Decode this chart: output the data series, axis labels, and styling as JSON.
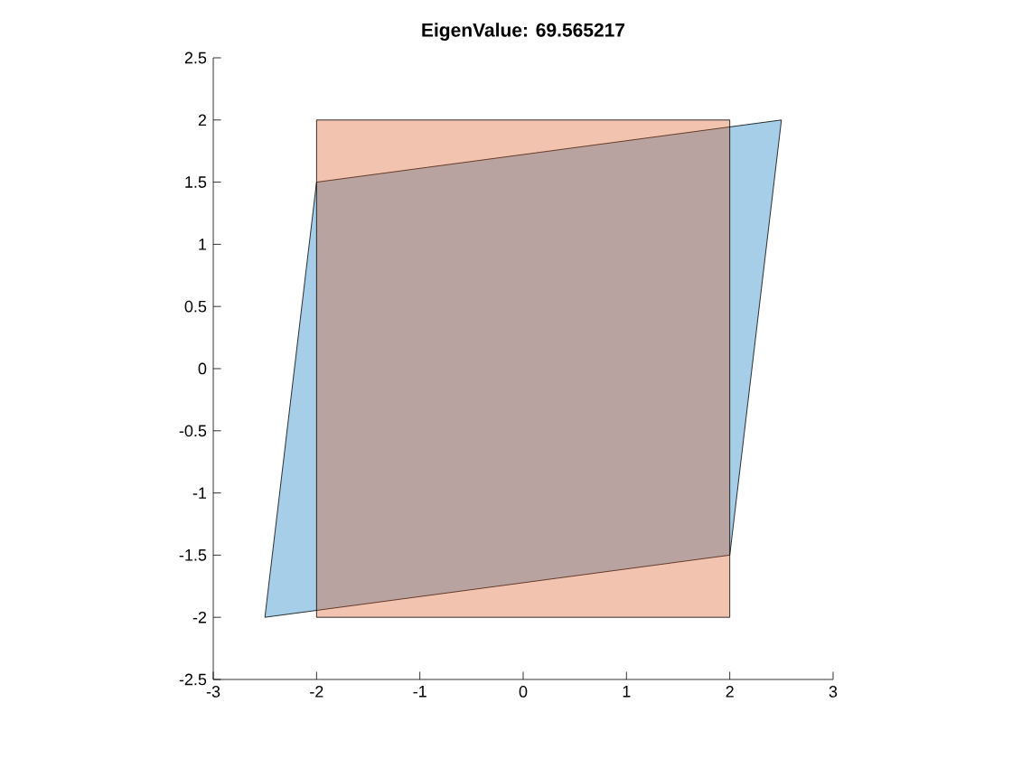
{
  "chart_data": {
    "type": "area",
    "title": "EigenValue: 69.565217",
    "series": [
      {
        "color": "#0072bd",
        "x": [
          -2.5,
          2,
          2.5,
          -2
        ],
        "values": [
          -2,
          -1.5,
          2,
          1.5
        ]
      },
      {
        "color": "#d95319",
        "x": [
          -2,
          2,
          2,
          -2
        ],
        "values": [
          -2,
          -2,
          2,
          2
        ]
      }
    ],
    "xlim": [
      -3,
      3
    ],
    "ylim": [
      -2.5,
      2.5
    ],
    "xticks": [
      -3,
      -2,
      -1,
      0,
      1,
      2,
      3
    ],
    "yticks": [
      -2.5,
      -2,
      -1.5,
      -1,
      -0.5,
      0,
      0.5,
      1,
      1.5,
      2,
      2.5
    ]
  }
}
